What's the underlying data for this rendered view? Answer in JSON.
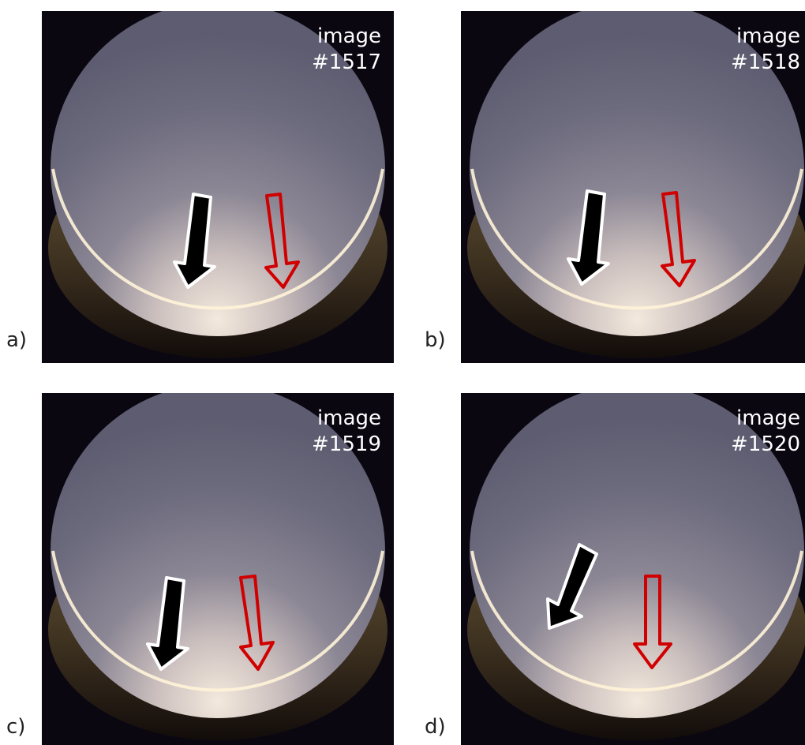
{
  "panels": [
    {
      "label": "a)",
      "caption_line1": "image",
      "caption_line2": "#1517"
    },
    {
      "label": "b)",
      "caption_line1": "image",
      "caption_line2": "#1518"
    },
    {
      "label": "c)",
      "caption_line1": "image",
      "caption_line2": "#1519"
    },
    {
      "label": "d)",
      "caption_line1": "image",
      "caption_line2": "#1520"
    }
  ],
  "colors": {
    "background": "#0b0711",
    "sky": "#6f6c80",
    "glow": "#fff3df",
    "black_arrow": "#000000",
    "red_arrow": "#d10000"
  },
  "icons": [
    "black-arrow-icon",
    "red-outline-arrow-icon"
  ]
}
